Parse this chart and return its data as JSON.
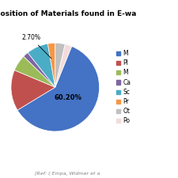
{
  "title": "Composition of Materials found in E-wa",
  "slices": [
    60.2,
    15.0,
    6.0,
    2.0,
    8.0,
    2.7,
    3.6,
    2.5
  ],
  "colors": [
    "#4472C4",
    "#C0504D",
    "#9BBB59",
    "#8064A2",
    "#4BACC6",
    "#F79646",
    "#C0C0C0",
    "#F2DCDB"
  ],
  "center_label": "60.20%",
  "ref_text": "[Ref: ( Empa, Widmer et a",
  "legend_labels": [
    "M",
    "Pl",
    "M",
    "Ca",
    "Sc",
    "Pr",
    "Ot",
    "Po"
  ],
  "title_fontsize": 6.5,
  "figsize": [
    2.25,
    2.25
  ],
  "dpi": 100,
  "startangle": 68
}
